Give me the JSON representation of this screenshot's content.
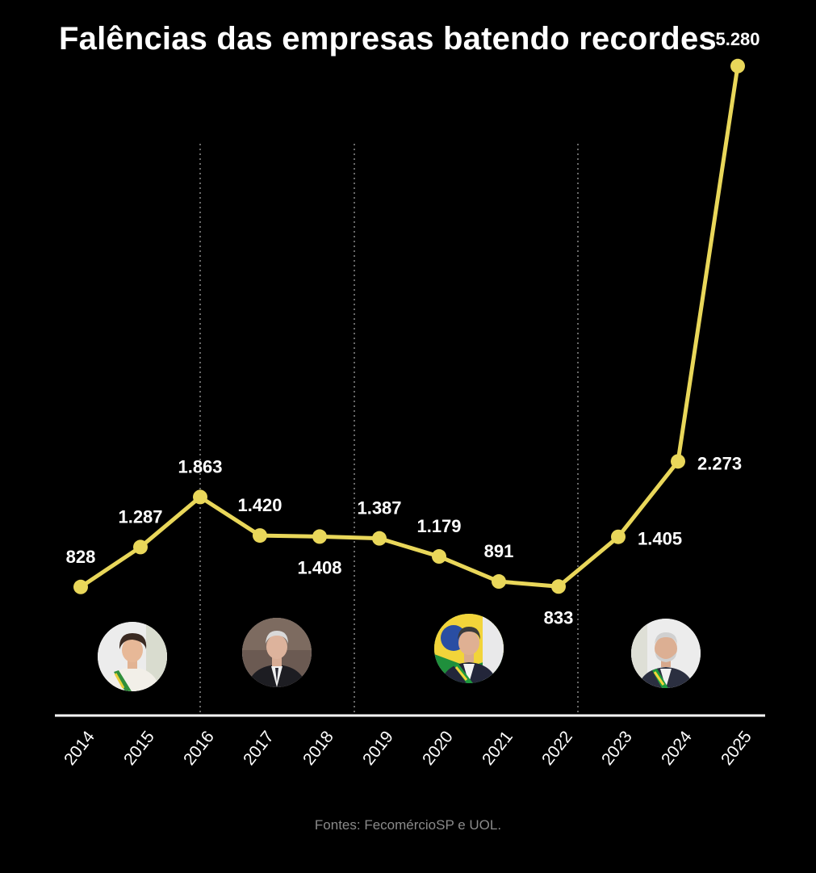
{
  "title": "Falências das empresas batendo recordes",
  "source": "Fontes: FecomércioSP e UOL.",
  "colors": {
    "background": "#000000",
    "line": "#e9d75a",
    "text": "#ffffff",
    "divider": "#8a8a8a",
    "source_text": "#8a8a8a"
  },
  "portraits": [
    {
      "name": "portrait-dilma",
      "icon": "portrait-woman-sash-icon"
    },
    {
      "name": "portrait-temer",
      "icon": "portrait-man-suit-icon"
    },
    {
      "name": "portrait-bolsonaro",
      "icon": "portrait-man-flag-sash-icon"
    },
    {
      "name": "portrait-lula",
      "icon": "portrait-man-sash-icon"
    }
  ],
  "chart_data": {
    "type": "line",
    "title": "Falências das empresas batendo recordes",
    "xlabel": "",
    "ylabel": "",
    "categories": [
      "2014",
      "2015",
      "2016",
      "2017",
      "2018",
      "2019",
      "2020",
      "2021",
      "2022",
      "2023",
      "2024",
      "2025"
    ],
    "values": [
      828,
      1287,
      1863,
      1420,
      1408,
      1387,
      1179,
      891,
      833,
      1405,
      2273,
      5280
    ],
    "labels": [
      "828",
      "1.287",
      "1.863",
      "1.420",
      "1.408",
      "1.387",
      "1.179",
      "891",
      "833",
      "1.405",
      "2.273",
      "5.280"
    ],
    "label_positions": [
      "above",
      "above",
      "above",
      "above",
      "below",
      "above",
      "above",
      "above",
      "below",
      "right",
      "right",
      "above"
    ],
    "period_dividers_after": [
      "2016",
      "2019",
      "2022"
    ],
    "grid": false,
    "legend": "none",
    "ylim": [
      0,
      5500
    ]
  }
}
